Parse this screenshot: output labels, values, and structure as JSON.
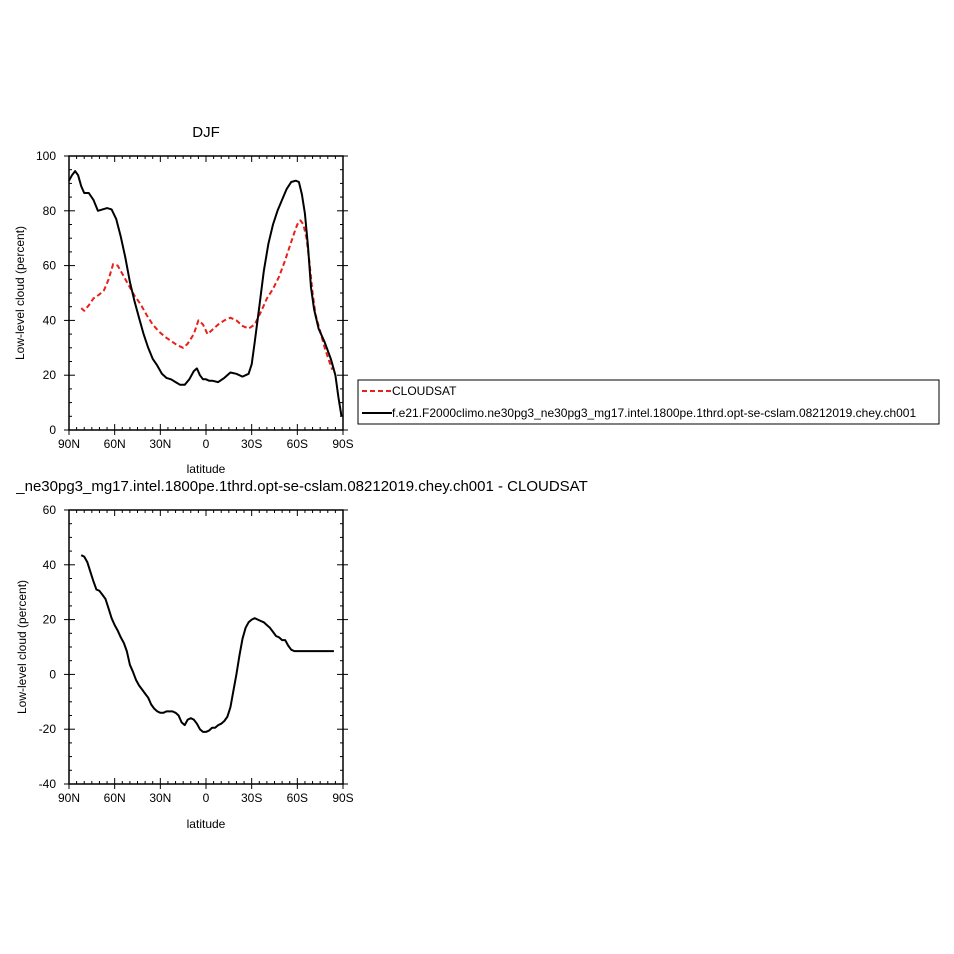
{
  "chart_data": [
    {
      "type": "line",
      "title": "DJF",
      "xlabel": "latitude",
      "ylabel": "Low-level cloud (percent)",
      "xlim": [
        90,
        -90
      ],
      "ylim": [
        0,
        100
      ],
      "x_ticks": [
        {
          "value": 90,
          "label": "90N"
        },
        {
          "value": 60,
          "label": "60N"
        },
        {
          "value": 30,
          "label": "30N"
        },
        {
          "value": 0,
          "label": "0"
        },
        {
          "value": -30,
          "label": "30S"
        },
        {
          "value": -60,
          "label": "60S"
        },
        {
          "value": -90,
          "label": "90S"
        }
      ],
      "y_ticks": [
        0,
        20,
        40,
        60,
        80,
        100
      ],
      "legend": "right",
      "series": [
        {
          "name": "CLOUDSAT",
          "color": "#e8201b",
          "style": "dashed",
          "x": [
            82,
            80,
            77,
            74,
            70,
            67,
            64,
            61,
            58,
            55,
            51,
            47,
            43,
            39,
            35,
            31,
            27,
            23,
            19,
            15,
            12,
            8,
            5,
            2,
            -1,
            -4,
            -8,
            -12,
            -16,
            -20,
            -24,
            -28,
            -32,
            -36,
            -40,
            -44,
            -48,
            -52,
            -55,
            -58,
            -60,
            -62,
            -64,
            -66,
            -68,
            -70,
            -72,
            -75,
            -78,
            -81,
            -83
          ],
          "y": [
            44.5,
            43.5,
            45.5,
            48,
            49.5,
            51,
            55,
            60.5,
            60,
            57,
            53,
            49,
            46,
            42,
            38.5,
            36,
            34,
            32.5,
            31,
            30,
            31.5,
            35,
            40,
            38.5,
            35,
            36.5,
            38.5,
            40,
            41,
            40,
            38,
            37,
            38.5,
            43,
            48,
            51.5,
            56,
            62,
            67,
            72,
            75,
            76.5,
            75,
            70,
            61,
            50,
            42,
            36,
            30,
            25,
            22
          ]
        },
        {
          "name": "f.e21.F2000climo.ne30pg3_ne30pg3_mg17.intel.1800pe.1thrd.opt-se-cslam.08212019.chey.ch001",
          "color": "#000000",
          "style": "solid",
          "x": [
            90,
            88,
            86,
            84,
            82,
            80,
            77,
            74,
            71,
            68,
            65,
            62,
            59,
            56,
            53,
            50,
            47,
            44,
            41,
            38,
            35,
            32,
            29,
            26,
            23,
            20,
            17,
            14,
            11,
            8,
            6,
            4,
            2,
            0,
            -2,
            -4,
            -8,
            -12,
            -16,
            -20,
            -24,
            -28,
            -30,
            -32,
            -35,
            -38,
            -41,
            -44,
            -47,
            -50,
            -53,
            -56,
            -59,
            -61,
            -63,
            -65,
            -67,
            -69,
            -71,
            -74,
            -78,
            -82,
            -85,
            -87,
            -89
          ],
          "y": [
            91,
            93,
            94.5,
            93,
            89,
            86.5,
            86.5,
            84,
            80,
            80.5,
            81,
            80.5,
            77,
            70.5,
            63,
            54,
            47,
            41,
            35,
            30,
            26,
            23.5,
            20.5,
            19,
            18.5,
            17.5,
            16.5,
            16.5,
            18.5,
            21.5,
            22.5,
            20,
            18.5,
            18.5,
            18,
            18,
            17.5,
            19,
            21,
            20.5,
            19.5,
            20.5,
            24,
            32,
            45,
            58,
            68,
            75,
            80,
            84,
            88,
            90.5,
            91,
            90.5,
            86,
            79,
            67,
            52,
            44,
            37,
            32,
            26,
            20,
            12,
            5
          ]
        }
      ]
    },
    {
      "type": "line",
      "title": "_ne30pg3_mg17.intel.1800pe.1thrd.opt-se-cslam.08212019.chey.ch001 - CLOUDSAT",
      "xlabel": "latitude",
      "ylabel": "Low-level cloud (percent)",
      "xlim": [
        90,
        -90
      ],
      "ylim": [
        -40,
        60
      ],
      "x_ticks": [
        {
          "value": 90,
          "label": "90N"
        },
        {
          "value": 60,
          "label": "60N"
        },
        {
          "value": 30,
          "label": "30N"
        },
        {
          "value": 0,
          "label": "0"
        },
        {
          "value": -30,
          "label": "30S"
        },
        {
          "value": -60,
          "label": "60S"
        },
        {
          "value": -90,
          "label": "90S"
        }
      ],
      "y_ticks": [
        -40,
        -20,
        0,
        20,
        40,
        60
      ],
      "series": [
        {
          "color": "#000000",
          "style": "solid",
          "x": [
            82,
            80,
            78,
            76,
            74,
            72,
            70,
            68,
            66,
            64,
            62,
            60,
            58,
            56,
            54,
            52,
            50,
            48,
            46,
            44,
            42,
            40,
            38,
            36,
            34,
            32,
            30,
            28,
            26,
            24,
            22,
            20,
            18,
            16,
            14,
            12,
            10,
            8,
            6,
            4,
            2,
            0,
            -2,
            -4,
            -6,
            -8,
            -10,
            -12,
            -14,
            -16,
            -18,
            -20,
            -22,
            -24,
            -26,
            -28,
            -30,
            -32,
            -34,
            -36,
            -38,
            -40,
            -42,
            -44,
            -46,
            -48,
            -50,
            -52,
            -54,
            -56,
            -58,
            -60,
            -62,
            -64,
            -66,
            -68,
            -70,
            -72,
            -74,
            -76,
            -78,
            -80,
            -82,
            -84
          ],
          "y": [
            43.5,
            43,
            41,
            37.5,
            34,
            31,
            30.5,
            29,
            27.5,
            24,
            20.5,
            18,
            16,
            13.5,
            11.5,
            8.5,
            3.5,
            1,
            -2,
            -4,
            -5.5,
            -7,
            -8.5,
            -11,
            -12.5,
            -13.5,
            -14,
            -14,
            -13.5,
            -13.5,
            -13.5,
            -14,
            -15,
            -17.5,
            -18.5,
            -16.5,
            -16,
            -16.5,
            -18,
            -20,
            -21,
            -21,
            -20.5,
            -19.5,
            -19.5,
            -18.5,
            -18,
            -17,
            -15.5,
            -12,
            -6,
            0,
            7,
            13,
            17,
            19,
            20,
            20.5,
            20,
            19.5,
            19,
            18,
            17,
            15.5,
            14,
            13.5,
            12.5,
            12.5,
            10.5,
            9,
            8.5,
            8.5,
            8.5,
            8.5,
            8.5,
            8.5,
            8.5,
            8.5,
            8.5,
            8.5,
            8.5,
            8.5,
            8.5,
            8.5
          ]
        }
      ]
    }
  ]
}
